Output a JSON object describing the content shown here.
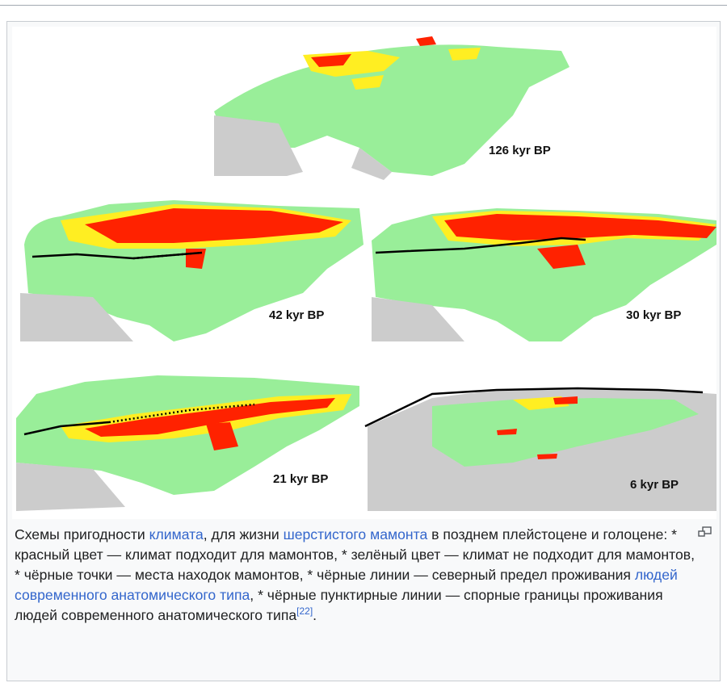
{
  "maps": [
    {
      "label": "126 kyr BP"
    },
    {
      "label": "42 kyr BP"
    },
    {
      "label": "30 kyr BP"
    },
    {
      "label": "21 kyr BP"
    },
    {
      "label": "6 kyr BP"
    }
  ],
  "colors": {
    "unsuitable": "#99ee99",
    "moderate": "#ffee22",
    "suitable": "#ff2200",
    "unknown": "#cccccc",
    "line": "#000000",
    "link": "#3366cc"
  },
  "caption": {
    "part1": "Схемы пригодности ",
    "link_climate": "климата",
    "part2": ", для жизни ",
    "link_mammoth": "шерстистого мамонта",
    "part3": " в позднем плейстоцене и голоцене: * красный цвет — климат подходит для мамонтов, * зелёный цвет — климат не подходит для мамонтов, * чёрные точки — места находок мамонтов, * чёрные линии — северный предел проживания ",
    "link_humans": "людей современного анатомического типа",
    "part4": ", * чёрные пунктирные линии — спорные границы проживания людей современного анатомического типа",
    "ref": "[22]",
    "part5": "."
  },
  "icons": {
    "enlarge": "magnify-icon"
  }
}
